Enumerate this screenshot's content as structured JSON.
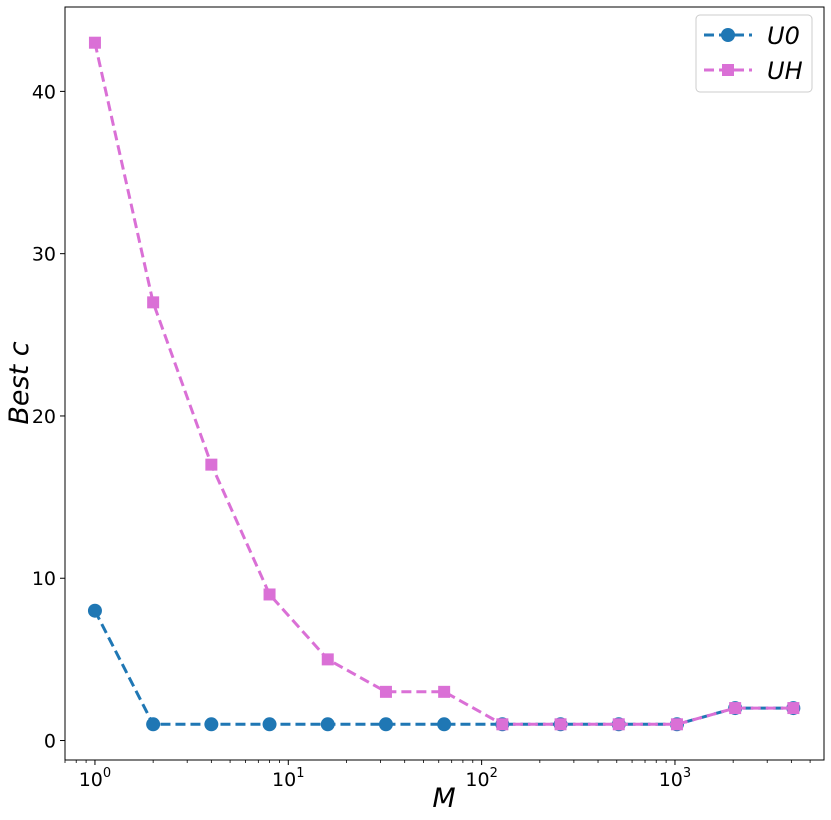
{
  "chart_data": {
    "type": "line",
    "xlabel": "M",
    "ylabel": "Best c",
    "xscale": "log",
    "xlim": [
      0.7,
      5900
    ],
    "ylim": [
      -1.2,
      45.2
    ],
    "grid": false,
    "legend_position": "top-right",
    "x_ticks": [
      {
        "value": 1,
        "base": "10",
        "exp": "0"
      },
      {
        "value": 10,
        "base": "10",
        "exp": "1"
      },
      {
        "value": 100,
        "base": "10",
        "exp": "2"
      },
      {
        "value": 1000,
        "base": "10",
        "exp": "3"
      }
    ],
    "y_ticks": [
      0,
      10,
      20,
      30,
      40
    ],
    "x": [
      1,
      2,
      4,
      8,
      16,
      32,
      64,
      128,
      256,
      512,
      1024,
      2048,
      4096
    ],
    "series": [
      {
        "name": "U0",
        "color": "#1f77b4",
        "marker": "circle",
        "linestyle": "dashed",
        "values": [
          8,
          1,
          1,
          1,
          1,
          1,
          1,
          1,
          1,
          1,
          1,
          2,
          2
        ]
      },
      {
        "name": "UH",
        "color": "#da70d6",
        "marker": "square",
        "linestyle": "dashed",
        "values": [
          43,
          27,
          17,
          9,
          5,
          3,
          3,
          1,
          1,
          1,
          1,
          2,
          2
        ]
      }
    ]
  }
}
